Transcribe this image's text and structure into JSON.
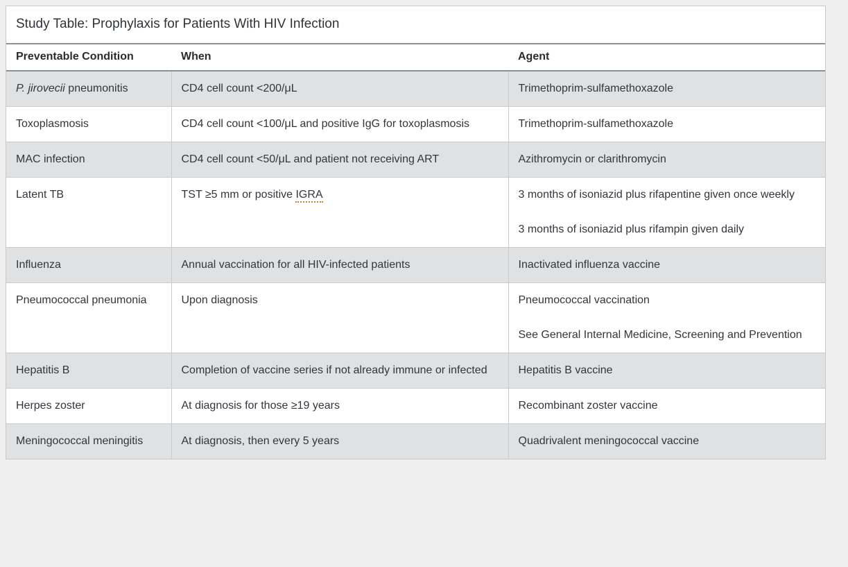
{
  "title": "Study Table: Prophylaxis for Patients With HIV Infection",
  "colors": {
    "page_background": "#efeff0",
    "card_background": "#ffffff",
    "row_alternate": "#e0e1e2",
    "heavy_border": "#8d9094",
    "light_border": "#c9cbcd",
    "text": "#31363c",
    "spellcheck_underline": "#c5802e"
  },
  "table": {
    "headers": [
      "Preventable Condition",
      "When",
      "Agent"
    ],
    "rows": [
      {
        "condition_italic": "P. jirovecii",
        "condition": " pneumonitis",
        "when": "CD4 cell count <200/μL",
        "agent": [
          "Trimethoprim-sulfamethoxazole"
        ]
      },
      {
        "condition": "Toxoplasmosis",
        "when": "CD4 cell count <100/μL and positive IgG for toxoplasmosis",
        "agent": [
          "Trimethoprim-sulfamethoxazole"
        ]
      },
      {
        "condition": "MAC infection",
        "when": "CD4 cell count <50/μL and patient not receiving ART",
        "agent": [
          "Azithromycin or clarithromycin"
        ]
      },
      {
        "condition": "Latent TB",
        "when": "TST ≥5 mm or positive IGRA",
        "when_spellcheck_word": "IGRA",
        "agent": [
          "3 months of isoniazid plus rifapentine given once weekly",
          "3 months of isoniazid plus rifampin given daily"
        ]
      },
      {
        "condition": "Influenza",
        "when": "Annual vaccination for all HIV-infected patients",
        "agent": [
          "Inactivated influenza vaccine"
        ]
      },
      {
        "condition": "Pneumococcal pneumonia",
        "when": "Upon diagnosis",
        "agent": [
          "Pneumococcal vaccination",
          "See General Internal Medicine, Screening and Prevention"
        ]
      },
      {
        "condition": "Hepatitis B",
        "when": "Completion of vaccine series if not already immune or infected",
        "agent": [
          "Hepatitis B vaccine"
        ]
      },
      {
        "condition": "Herpes zoster",
        "when": "At diagnosis for those ≥19 years",
        "agent": [
          "Recombinant zoster vaccine"
        ]
      },
      {
        "condition": "Meningococcal meningitis",
        "when": "At diagnosis, then every 5 years",
        "agent": [
          "Quadrivalent meningococcal vaccine"
        ]
      }
    ]
  }
}
